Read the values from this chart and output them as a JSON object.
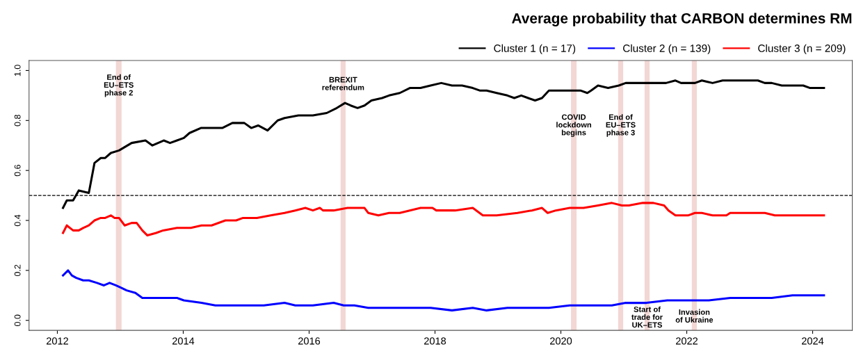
{
  "chart_data": {
    "type": "line",
    "title": "Average probability that CARBON determines RM",
    "xlim": [
      2011.55,
      2024.63
    ],
    "xticks": [
      2012,
      2014,
      2016,
      2018,
      2020,
      2022,
      2024
    ],
    "ylim": [
      -0.04,
      1.04
    ],
    "yticks": [
      {
        "value": 0,
        "label": "0.0"
      },
      0.2,
      0.4,
      0.6,
      0.8,
      {
        "value": 1,
        "label": "1.0"
      }
    ],
    "grid": false,
    "legend": "top right",
    "marker": "none",
    "line_style": "solid",
    "series": [
      {
        "name": "Cluster 1 (n = 17)",
        "color": "#000000",
        "x": [
          2012.09,
          2012.15,
          2012.25,
          2012.34,
          2012.5,
          2012.59,
          2012.69,
          2012.76,
          2012.85,
          2012.98,
          2013.18,
          2013.4,
          2013.51,
          2013.69,
          2013.79,
          2013.9,
          2014.01,
          2014.1,
          2014.28,
          2014.4,
          2014.51,
          2014.62,
          2014.78,
          2014.9,
          2014.97,
          2015.08,
          2015.19,
          2015.34,
          2015.5,
          2015.61,
          2015.83,
          2015.94,
          2016.06,
          2016.28,
          2016.44,
          2016.57,
          2016.66,
          2016.77,
          2016.88,
          2016.99,
          2017.16,
          2017.27,
          2017.44,
          2017.6,
          2017.77,
          2017.93,
          2018.1,
          2018.27,
          2018.43,
          2018.6,
          2018.71,
          2018.82,
          2018.98,
          2019.15,
          2019.26,
          2019.37,
          2019.48,
          2019.59,
          2019.7,
          2019.81,
          2020.03,
          2020.14,
          2020.31,
          2020.42,
          2020.48,
          2020.59,
          2020.75,
          2020.92,
          2021.03,
          2021.19,
          2021.36,
          2021.52,
          2021.67,
          2021.82,
          2021.91,
          2022.13,
          2022.24,
          2022.41,
          2022.57,
          2022.74,
          2022.96,
          2023.13,
          2023.24,
          2023.35,
          2023.51,
          2023.68,
          2023.85,
          2023.96,
          2024.07,
          2024.18
        ],
        "values": [
          0.45,
          0.48,
          0.48,
          0.52,
          0.51,
          0.63,
          0.65,
          0.65,
          0.67,
          0.68,
          0.71,
          0.72,
          0.7,
          0.72,
          0.71,
          0.72,
          0.73,
          0.75,
          0.77,
          0.77,
          0.77,
          0.77,
          0.79,
          0.79,
          0.79,
          0.77,
          0.78,
          0.76,
          0.8,
          0.81,
          0.82,
          0.82,
          0.82,
          0.83,
          0.85,
          0.87,
          0.86,
          0.85,
          0.86,
          0.88,
          0.89,
          0.9,
          0.91,
          0.93,
          0.93,
          0.94,
          0.95,
          0.94,
          0.94,
          0.93,
          0.92,
          0.92,
          0.91,
          0.9,
          0.89,
          0.9,
          0.89,
          0.88,
          0.89,
          0.92,
          0.92,
          0.92,
          0.92,
          0.91,
          0.92,
          0.94,
          0.93,
          0.94,
          0.95,
          0.95,
          0.95,
          0.95,
          0.95,
          0.96,
          0.95,
          0.95,
          0.96,
          0.95,
          0.96,
          0.96,
          0.96,
          0.96,
          0.95,
          0.95,
          0.94,
          0.94,
          0.94,
          0.93,
          0.93,
          0.93
        ]
      },
      {
        "name": "Cluster 2 (n = 139)",
        "color": "#0000ff",
        "x": [
          2012.09,
          2012.17,
          2012.23,
          2012.3,
          2012.41,
          2012.5,
          2012.63,
          2012.74,
          2012.83,
          2012.93,
          2013.02,
          2013.1,
          2013.24,
          2013.35,
          2013.46,
          2013.65,
          2013.9,
          2014.01,
          2014.29,
          2014.51,
          2014.73,
          2014.9,
          2015.06,
          2015.28,
          2015.61,
          2015.78,
          2016.06,
          2016.39,
          2016.55,
          2016.72,
          2016.94,
          2017.27,
          2017.71,
          2017.93,
          2018.27,
          2018.6,
          2018.82,
          2019.15,
          2019.59,
          2019.81,
          2020.14,
          2020.48,
          2020.81,
          2021.03,
          2021.36,
          2021.69,
          2022.02,
          2022.35,
          2022.69,
          2023.02,
          2023.35,
          2023.68,
          2024.02,
          2024.18
        ],
        "values": [
          0.18,
          0.2,
          0.18,
          0.17,
          0.16,
          0.16,
          0.15,
          0.14,
          0.15,
          0.14,
          0.13,
          0.12,
          0.11,
          0.09,
          0.09,
          0.09,
          0.09,
          0.08,
          0.07,
          0.06,
          0.06,
          0.06,
          0.06,
          0.06,
          0.07,
          0.06,
          0.06,
          0.07,
          0.06,
          0.06,
          0.05,
          0.05,
          0.05,
          0.05,
          0.04,
          0.05,
          0.04,
          0.05,
          0.05,
          0.05,
          0.06,
          0.06,
          0.06,
          0.07,
          0.07,
          0.08,
          0.08,
          0.08,
          0.09,
          0.09,
          0.09,
          0.1,
          0.1,
          0.1
        ]
      },
      {
        "name": "Cluster 3 (n = 209)",
        "color": "#ff0000",
        "x": [
          2012.09,
          2012.15,
          2012.25,
          2012.34,
          2012.41,
          2012.5,
          2012.59,
          2012.69,
          2012.76,
          2012.85,
          2012.91,
          2012.98,
          2013.07,
          2013.18,
          2013.26,
          2013.35,
          2013.43,
          2013.57,
          2013.68,
          2013.9,
          2014.01,
          2014.12,
          2014.29,
          2014.45,
          2014.67,
          2014.84,
          2014.95,
          2015.17,
          2015.39,
          2015.61,
          2015.78,
          2015.94,
          2016.06,
          2016.17,
          2016.22,
          2016.39,
          2016.61,
          2016.83,
          2016.88,
          2016.94,
          2017.1,
          2017.27,
          2017.44,
          2017.6,
          2017.77,
          2017.96,
          2018.02,
          2018.15,
          2018.32,
          2018.6,
          2018.76,
          2018.98,
          2019.31,
          2019.54,
          2019.7,
          2019.79,
          2019.92,
          2020.14,
          2020.36,
          2020.59,
          2020.81,
          2020.97,
          2021.08,
          2021.3,
          2021.47,
          2021.64,
          2021.71,
          2021.82,
          2022.02,
          2022.13,
          2022.24,
          2022.41,
          2022.63,
          2022.69,
          2022.85,
          2023.24,
          2023.4,
          2023.51,
          2023.57,
          2023.79,
          2024.02,
          2024.08,
          2024.18
        ],
        "values": [
          0.35,
          0.38,
          0.36,
          0.36,
          0.37,
          0.38,
          0.4,
          0.41,
          0.41,
          0.42,
          0.41,
          0.41,
          0.38,
          0.39,
          0.39,
          0.36,
          0.34,
          0.35,
          0.36,
          0.37,
          0.37,
          0.37,
          0.38,
          0.38,
          0.4,
          0.4,
          0.41,
          0.41,
          0.42,
          0.43,
          0.44,
          0.45,
          0.44,
          0.45,
          0.44,
          0.44,
          0.45,
          0.45,
          0.45,
          0.43,
          0.42,
          0.43,
          0.43,
          0.44,
          0.45,
          0.45,
          0.44,
          0.44,
          0.44,
          0.45,
          0.42,
          0.42,
          0.43,
          0.44,
          0.45,
          0.43,
          0.44,
          0.45,
          0.45,
          0.46,
          0.47,
          0.46,
          0.46,
          0.47,
          0.47,
          0.46,
          0.44,
          0.42,
          0.42,
          0.43,
          0.43,
          0.42,
          0.42,
          0.43,
          0.43,
          0.43,
          0.42,
          0.42,
          0.42,
          0.42,
          0.42,
          0.42,
          0.42
        ]
      }
    ],
    "ref_lines": [
      {
        "axis": "y",
        "value": 0.5,
        "color": "#000000",
        "line_style": "dashed"
      }
    ],
    "bands": [
      {
        "axis": "x",
        "from": 2012.93,
        "to": 2013.02,
        "label": "End of\nEU–ETS\nphase 2",
        "color": "#f2d7d5"
      },
      {
        "axis": "x",
        "from": 2016.5,
        "to": 2016.58,
        "label": "BREXIT\nreferendum",
        "color": "#f2d7d5"
      },
      {
        "axis": "x",
        "from": 2020.16,
        "to": 2020.25,
        "label": "COVID\nlockdown\nbegins",
        "color": "#f2d7d5"
      },
      {
        "axis": "x",
        "from": 2020.91,
        "to": 2020.99,
        "label": "End of\nEU–ETS\nphase 3",
        "color": "#f2d7d5"
      },
      {
        "axis": "x",
        "from": 2021.33,
        "to": 2021.41,
        "label": "Start of\ntrade for\nUK–ETS",
        "color": "#f2d7d5"
      },
      {
        "axis": "x",
        "from": 2022.08,
        "to": 2022.16,
        "label": "Invasion\nof Ukraine",
        "color": "#f2d7d5"
      }
    ]
  }
}
